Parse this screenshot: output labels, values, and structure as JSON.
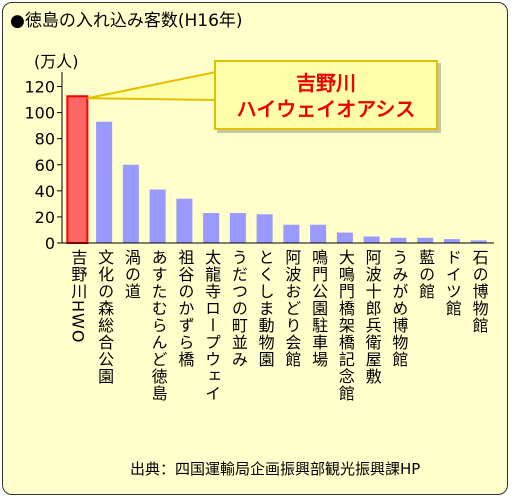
{
  "title": "●徳島の入れ込み客数(H16年)",
  "unit_label": "(万人)",
  "callout": {
    "line1": "吉野川",
    "line2": "ハイウェイオアシス"
  },
  "source": "出典：四国運輸局企画振興部観光振興課HP",
  "colors": {
    "background": "#ffffcc",
    "bar": "#9999ff",
    "highlight_bar": "#ff6666",
    "highlight_border": "#ff0000",
    "callout_text": "#ee0000",
    "callout_border": "#e0c000"
  },
  "chart_data": {
    "type": "bar",
    "categories": [
      "吉野川HWO",
      "文化の森総合公園",
      "渦の道",
      "あすたむらんど徳島",
      "祖谷のかずら橋",
      "太龍寺ロープウェイ",
      "うだつの町並み",
      "とくしま動物園",
      "阿波おどり会館",
      "鳴門公園駐車場",
      "大鳴門橋架橋記念館",
      "阿波十郎兵衛屋敷",
      "うみがめ博物館",
      "藍の館",
      "ドイツ館",
      "石の博物館"
    ],
    "values": [
      111,
      93,
      60,
      41,
      34,
      23,
      23,
      22,
      14,
      14,
      8,
      5,
      4,
      4,
      3,
      2
    ],
    "highlight_index": 0,
    "yticks": [
      0,
      20,
      40,
      60,
      80,
      100,
      120
    ],
    "ylim": [
      0,
      125
    ],
    "ylabel": "(万人)",
    "grid": false
  }
}
